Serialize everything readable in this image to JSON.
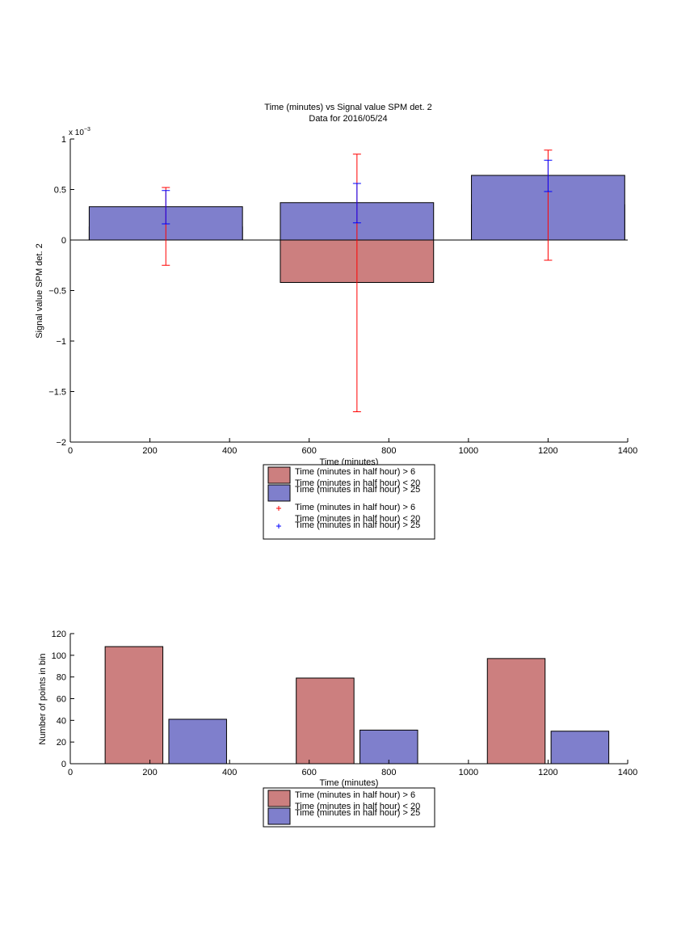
{
  "chart_data": [
    {
      "type": "bar",
      "title": "Time (minutes) vs Signal value SPM det. 2",
      "subtitle": "Data for 2016/05/24",
      "xlabel": "Time (minutes)",
      "ylabel": "Signal value SPM det. 2",
      "exponent_base": "x 10",
      "exponent_power": "−3",
      "xlim": [
        0,
        1400
      ],
      "ylim": [
        -2,
        1
      ],
      "xticks": [
        0,
        200,
        400,
        600,
        800,
        1000,
        1200,
        1400
      ],
      "xtick_labels": [
        "0",
        "200",
        "400",
        "600",
        "800",
        "1000",
        "1200",
        "1400"
      ],
      "yticks": [
        -2,
        -1.5,
        -1,
        -0.5,
        0,
        0.5,
        1
      ],
      "ytick_labels": [
        "−2",
        "−1.5",
        "−1",
        "−0.5",
        "0",
        "0.5",
        "1"
      ],
      "grid": false,
      "legend_position": "below",
      "categories": [
        240,
        720,
        1200
      ],
      "bar_width": 385,
      "series": [
        {
          "name": "Time (minutes in half hour) > 6\nTime (minutes in half hour) < 20",
          "color": "#cc7f7f",
          "values": [
            0.13,
            -0.42,
            0.35
          ]
        },
        {
          "name": "Time (minutes in half hour) > 25",
          "color": "#7f7fcc",
          "values": [
            0.33,
            0.37,
            0.64
          ]
        }
      ],
      "errorbars": [
        {
          "name": "Time (minutes in half hour) > 6\nTime (minutes in half hour) < 20",
          "color": "#ff0000",
          "x": [
            240,
            720,
            1200
          ],
          "low": [
            -0.25,
            -1.7,
            -0.2
          ],
          "high": [
            0.52,
            0.85,
            0.89
          ],
          "center": [
            0.13,
            -0.42,
            0.35
          ]
        },
        {
          "name": "Time (minutes in half hour) > 25",
          "color": "#0000ff",
          "x": [
            240,
            720,
            1200
          ],
          "low": [
            0.16,
            0.17,
            0.48
          ],
          "high": [
            0.49,
            0.56,
            0.79
          ],
          "center": [
            0.33,
            0.37,
            0.64
          ]
        }
      ],
      "legend": [
        {
          "kind": "patch",
          "color": "#cc7f7f",
          "line1": "Time (minutes in half hour) > 6",
          "line2": "Time (minutes in half hour) < 20"
        },
        {
          "kind": "patch",
          "color": "#7f7fcc",
          "line1": "Time (minutes in half hour) > 25",
          "line2": ""
        },
        {
          "kind": "marker",
          "color": "#ff0000",
          "line1": "Time (minutes in half hour) > 6",
          "line2": "Time (minutes in half hour) < 20"
        },
        {
          "kind": "marker",
          "color": "#0000ff",
          "line1": "Time (minutes in half hour) > 25",
          "line2": ""
        }
      ]
    },
    {
      "type": "bar",
      "title": "",
      "xlabel": "Time (minutes)",
      "ylabel": "Number of points in bin",
      "xlim": [
        0,
        1400
      ],
      "ylim": [
        0,
        120
      ],
      "xticks": [
        0,
        200,
        400,
        600,
        800,
        1000,
        1200,
        1400
      ],
      "xtick_labels": [
        "0",
        "200",
        "400",
        "600",
        "800",
        "1000",
        "1200",
        "1400"
      ],
      "yticks": [
        0,
        20,
        40,
        60,
        80,
        100,
        120
      ],
      "ytick_labels": [
        "0",
        "20",
        "40",
        "60",
        "80",
        "100",
        "120"
      ],
      "grid": false,
      "legend_position": "below",
      "categories": [
        240,
        720,
        1200
      ],
      "bar_width": 145,
      "series": [
        {
          "name": "Time (minutes in half hour) > 6\nTime (minutes in half hour) < 20",
          "color": "#cc7f7f",
          "x": [
            160,
            640,
            1120
          ],
          "values": [
            108,
            79,
            97
          ]
        },
        {
          "name": "Time (minutes in half hour) > 25",
          "color": "#7f7fcc",
          "x": [
            320,
            800,
            1280
          ],
          "values": [
            41,
            31,
            30
          ]
        }
      ],
      "legend": [
        {
          "kind": "patch",
          "color": "#cc7f7f",
          "line1": "Time (minutes in half hour) > 6",
          "line2": "Time (minutes in half hour) < 20"
        },
        {
          "kind": "patch",
          "color": "#7f7fcc",
          "line1": "Time (minutes in half hour) > 25",
          "line2": ""
        }
      ]
    }
  ]
}
